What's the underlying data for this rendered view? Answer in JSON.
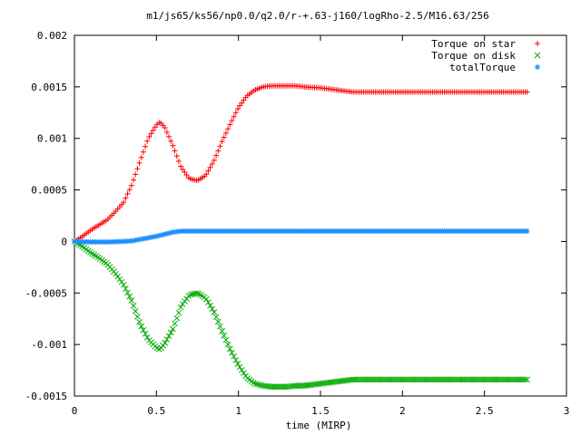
{
  "chart_data": {
    "type": "scatter",
    "title": "m1/js65/ks56/np0.0/q2.0/r-+.63-j160/logRho-2.5/M16.63/256",
    "xlabel": "time (MIRP)",
    "ylabel": "",
    "xlim": [
      0,
      3
    ],
    "ylim": [
      -0.0015,
      0.002
    ],
    "x_ticks": [
      0,
      0.5,
      1,
      1.5,
      2,
      2.5,
      3
    ],
    "x_tick_labels": [
      "0",
      "0.5",
      "1",
      "1.5",
      "2",
      "2.5",
      "3"
    ],
    "y_ticks": [
      -0.0015,
      -0.001,
      -0.0005,
      0,
      0.0005,
      0.001,
      0.0015,
      0.002
    ],
    "y_tick_labels": [
      "-0.0015",
      "-0.001",
      "-0.0005",
      "0",
      "0.0005",
      "0.001",
      "0.0015",
      "0.002"
    ],
    "grid": false,
    "legend_position": "top-right",
    "series": [
      {
        "name": "Torque on star",
        "marker": "plus",
        "color": "#ff0000",
        "x": [
          0,
          0.05,
          0.1,
          0.15,
          0.2,
          0.25,
          0.3,
          0.35,
          0.4,
          0.45,
          0.5,
          0.52,
          0.55,
          0.6,
          0.65,
          0.7,
          0.75,
          0.8,
          0.85,
          0.9,
          0.95,
          1.0,
          1.05,
          1.1,
          1.15,
          1.2,
          1.25,
          1.3,
          1.35,
          1.4,
          1.5,
          1.6,
          1.7,
          1.8,
          2.0,
          2.2,
          2.4,
          2.6,
          2.77
        ],
        "y": [
          0,
          5e-05,
          0.00011,
          0.00016,
          0.00021,
          0.00029,
          0.00038,
          0.00055,
          0.00078,
          0.001,
          0.00113,
          0.00116,
          0.00111,
          0.00093,
          0.00072,
          0.00061,
          0.00059,
          0.00064,
          0.00078,
          0.00097,
          0.00114,
          0.0013,
          0.00141,
          0.00147,
          0.0015,
          0.00151,
          0.00151,
          0.00151,
          0.00151,
          0.0015,
          0.00149,
          0.00147,
          0.00145,
          0.00145,
          0.00145,
          0.00145,
          0.00145,
          0.00145,
          0.00145
        ]
      },
      {
        "name": "Torque on disk",
        "marker": "cross",
        "color": "#00aa00",
        "x": [
          0,
          0.05,
          0.1,
          0.15,
          0.2,
          0.25,
          0.3,
          0.35,
          0.4,
          0.45,
          0.5,
          0.52,
          0.55,
          0.6,
          0.65,
          0.7,
          0.75,
          0.8,
          0.85,
          0.9,
          0.95,
          1.0,
          1.05,
          1.1,
          1.15,
          1.2,
          1.25,
          1.3,
          1.35,
          1.4,
          1.5,
          1.6,
          1.7,
          1.8,
          2.0,
          2.2,
          2.4,
          2.6,
          2.77
        ],
        "y": [
          0,
          -5e-05,
          -0.00011,
          -0.00016,
          -0.00022,
          -0.00031,
          -0.00042,
          -0.00058,
          -0.0008,
          -0.00095,
          -0.00103,
          -0.00105,
          -0.00099,
          -0.00085,
          -0.00063,
          -0.00052,
          -0.0005,
          -0.00055,
          -0.00068,
          -0.00087,
          -0.00105,
          -0.0012,
          -0.00132,
          -0.00138,
          -0.0014,
          -0.00141,
          -0.00141,
          -0.00141,
          -0.0014,
          -0.0014,
          -0.00138,
          -0.00136,
          -0.00134,
          -0.00134,
          -0.00134,
          -0.00134,
          -0.00134,
          -0.00134,
          -0.00134
        ]
      },
      {
        "name": "totalTorque",
        "marker": "star",
        "color": "#1e90ff",
        "x": [
          0,
          0.1,
          0.2,
          0.3,
          0.35,
          0.4,
          0.45,
          0.5,
          0.55,
          0.6,
          0.65,
          0.7,
          0.8,
          1.0,
          1.2,
          1.5,
          2.0,
          2.5,
          2.77
        ],
        "y": [
          0,
          -5e-06,
          -5e-06,
          0,
          5e-06,
          2e-05,
          3.5e-05,
          5e-05,
          7e-05,
          9e-05,
          0.0001,
          0.0001,
          0.0001,
          0.0001,
          0.0001,
          0.0001,
          0.0001,
          0.0001,
          0.0001
        ]
      }
    ]
  }
}
